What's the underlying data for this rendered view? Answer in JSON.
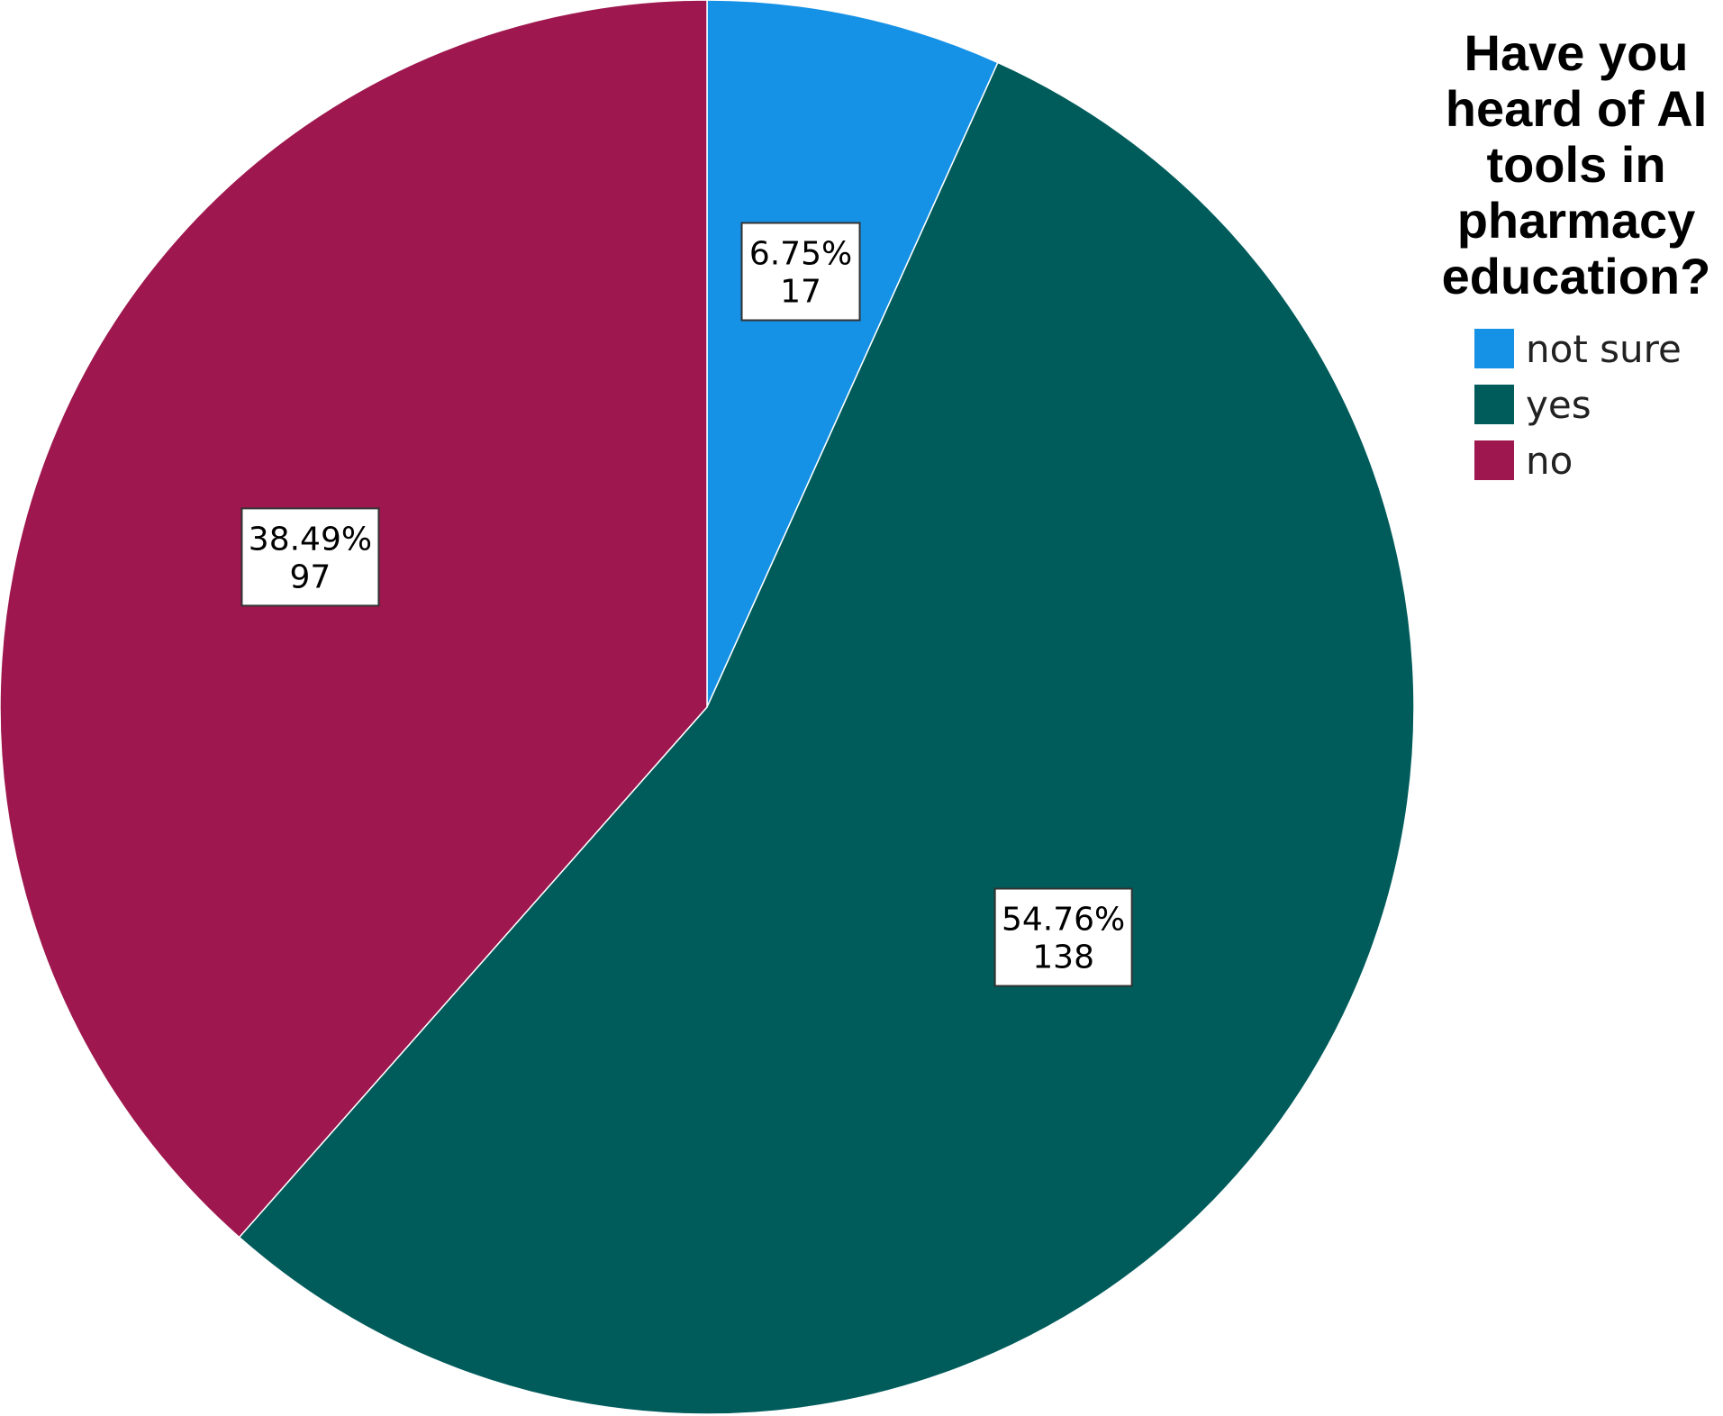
{
  "chart_data": {
    "type": "pie",
    "legend_title": [
      "Have you",
      "heard of AI",
      "tools in",
      "pharmacy",
      "education?"
    ],
    "legend_position": "top-right",
    "slices": [
      {
        "name": "not sure",
        "value": 17,
        "percent": "6.75%",
        "count": "17",
        "color": "#1591e6"
      },
      {
        "name": "yes",
        "value": 138,
        "percent": "54.76%",
        "count": "138",
        "color": "#005b5b"
      },
      {
        "name": "no",
        "value": 97,
        "percent": "38.49%",
        "count": "97",
        "color": "#9e174e"
      }
    ],
    "start_angle_deg": 0,
    "direction": "clockwise"
  }
}
